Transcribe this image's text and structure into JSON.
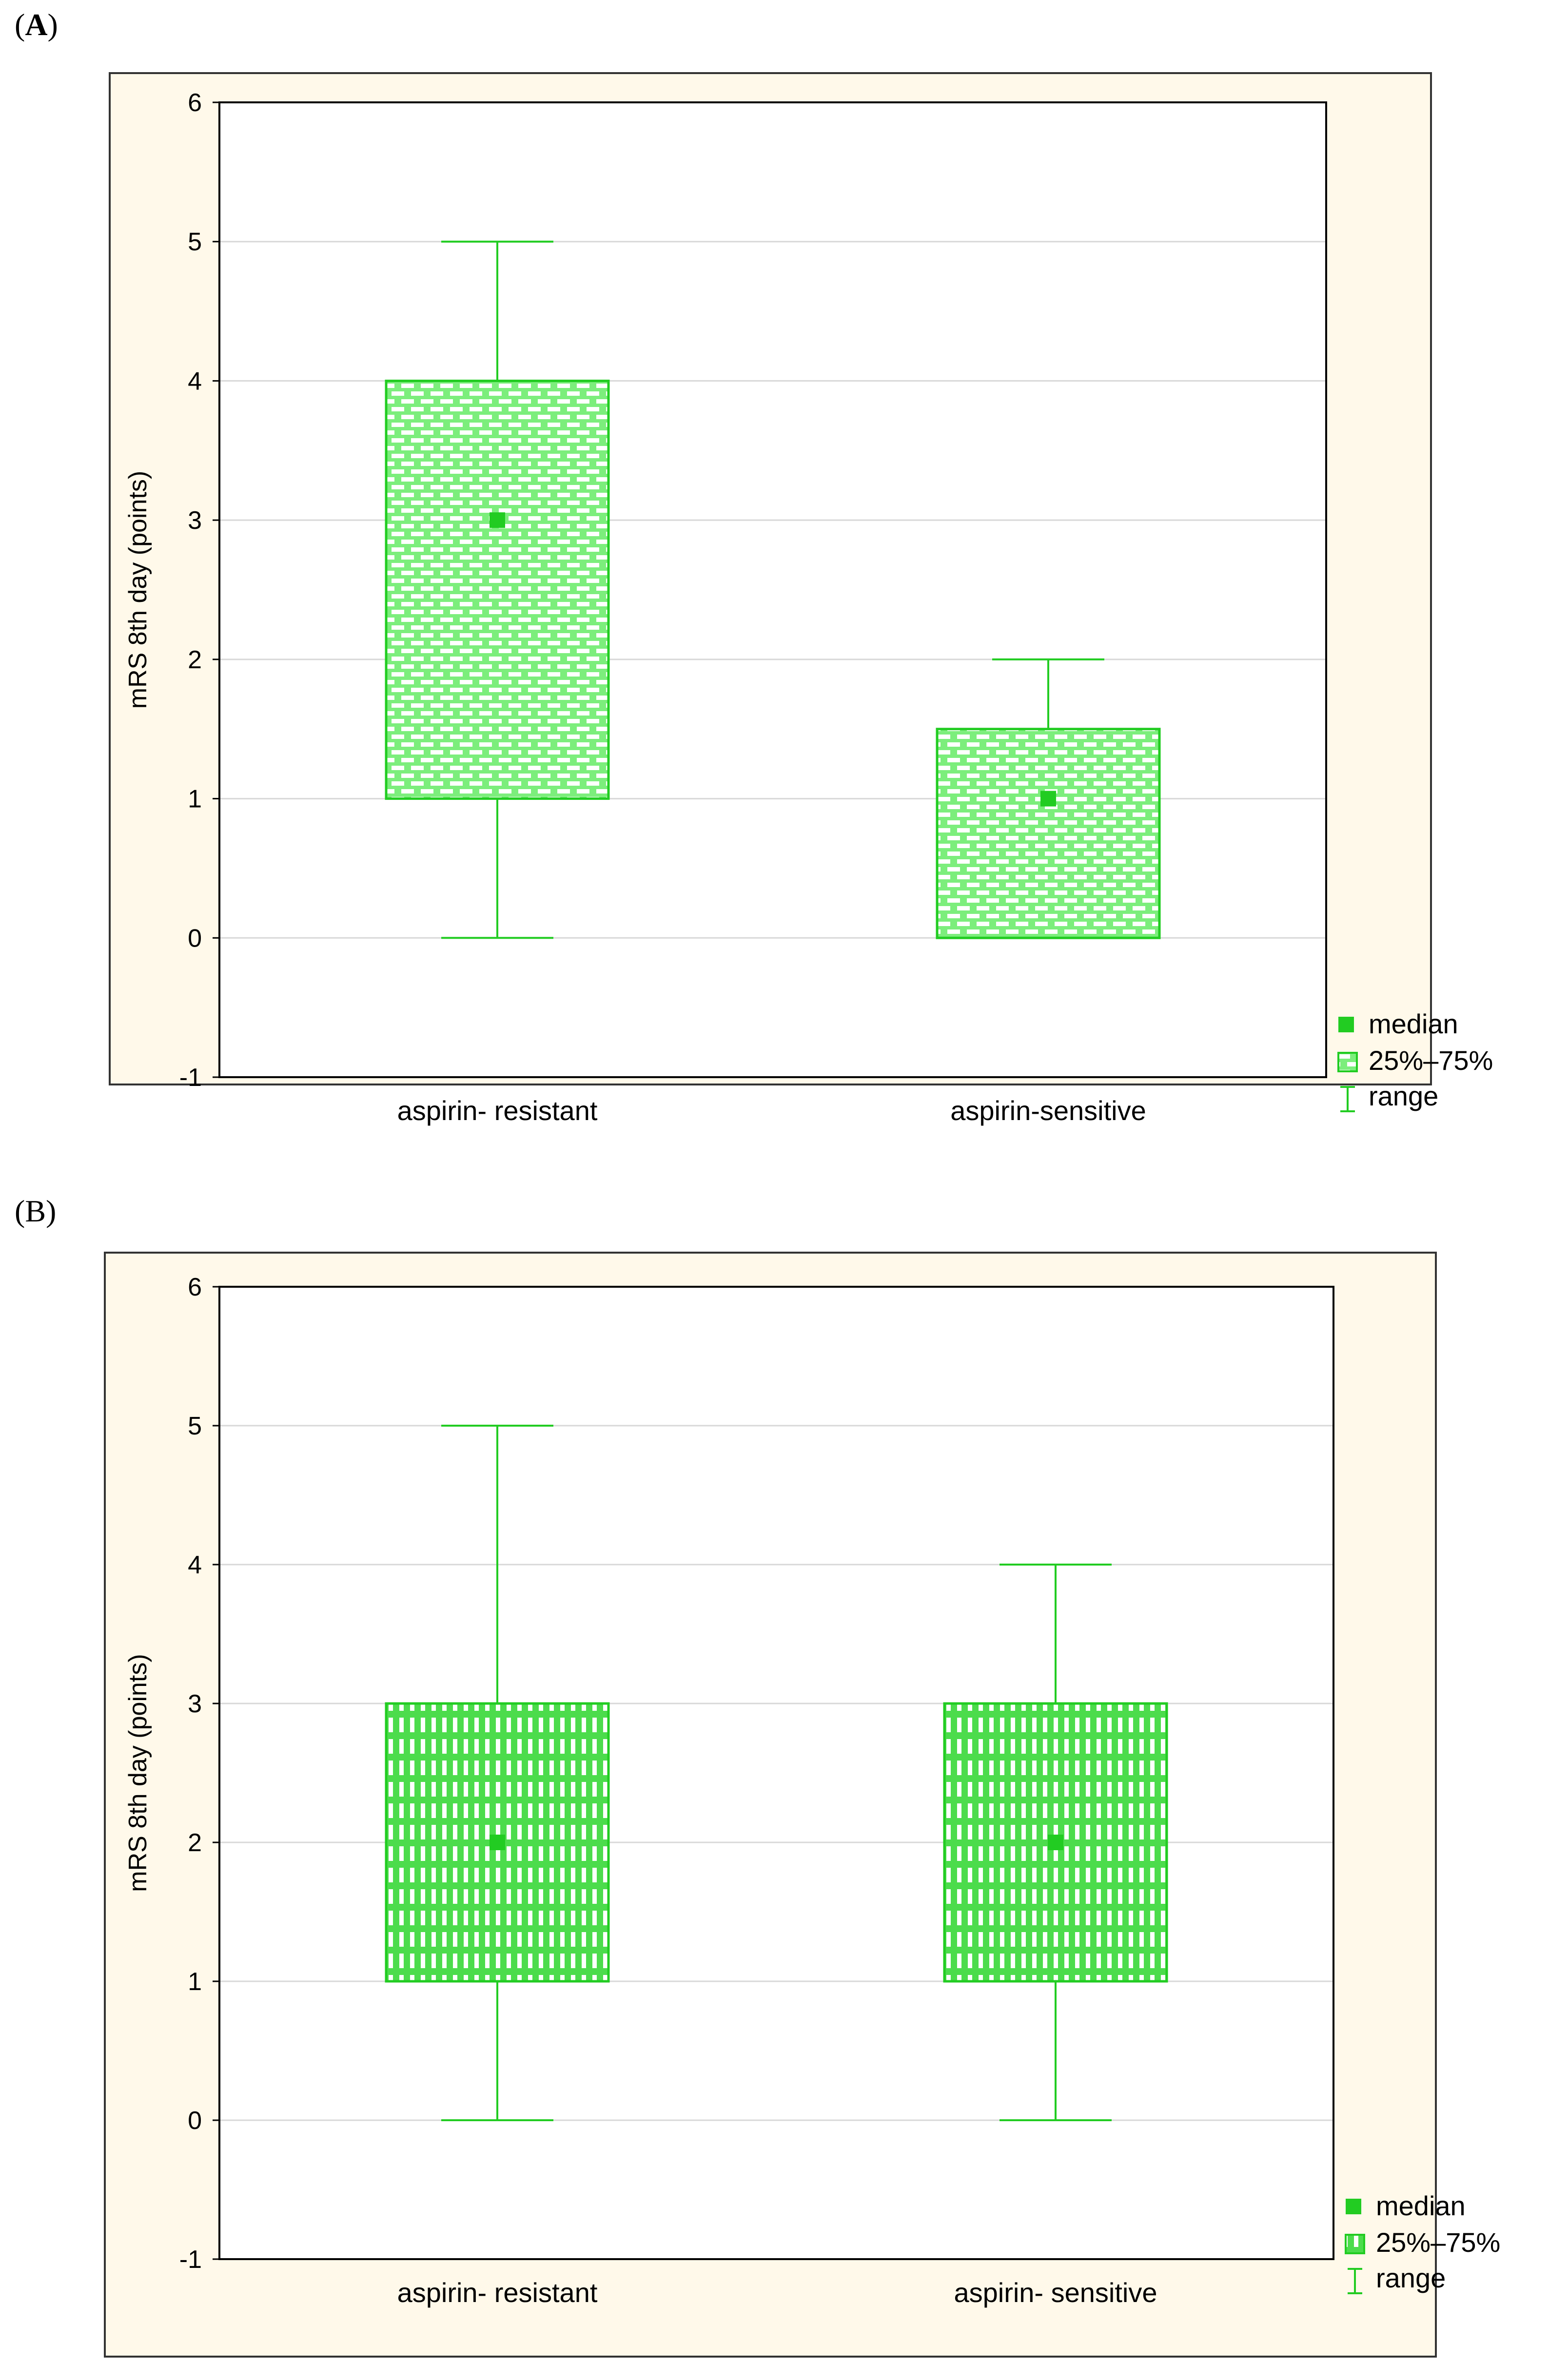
{
  "panels": [
    {
      "label_prefix": "(",
      "label_letter": "A",
      "label_suffix": ")"
    },
    {
      "label_prefix": "(",
      "label_letter": "B",
      "label_suffix": ")"
    }
  ],
  "colors": {
    "green": "#22CC22",
    "fill": "#7CEE7C",
    "frame_bg": "#FFF9EA",
    "grid": "#D8D8D8"
  },
  "chart_data": [
    {
      "type": "boxplot",
      "title": "",
      "xlabel": "",
      "ylabel": "mRS 8th day (points)",
      "ylim": [
        -1,
        6
      ],
      "yticks": [
        -1,
        0,
        1,
        2,
        3,
        4,
        5,
        6
      ],
      "categories": [
        "aspirin- resistant",
        "aspirin-sensitive"
      ],
      "stats": [
        {
          "min": 0,
          "q1": 1,
          "median": 3,
          "q3": 4,
          "max": 5
        },
        {
          "min": 0,
          "q1": 0,
          "median": 1,
          "q3": 1.5,
          "max": 2
        }
      ],
      "legend": [
        "median",
        "25%–75%",
        "range"
      ],
      "legend_position": "bottom-right"
    },
    {
      "type": "boxplot",
      "title": "",
      "xlabel": "",
      "ylabel": "mRS 8th day (points)",
      "ylim": [
        -1,
        6
      ],
      "yticks": [
        -1,
        0,
        1,
        2,
        3,
        4,
        5,
        6
      ],
      "categories": [
        "aspirin- resistant",
        "aspirin- sensitive"
      ],
      "stats": [
        {
          "min": 0,
          "q1": 1,
          "median": 2,
          "q3": 3,
          "max": 5
        },
        {
          "min": 0,
          "q1": 1,
          "median": 2,
          "q3": 3,
          "max": 4
        }
      ],
      "legend": [
        "median",
        "25%–75%",
        "range"
      ],
      "legend_position": "bottom-right"
    }
  ]
}
